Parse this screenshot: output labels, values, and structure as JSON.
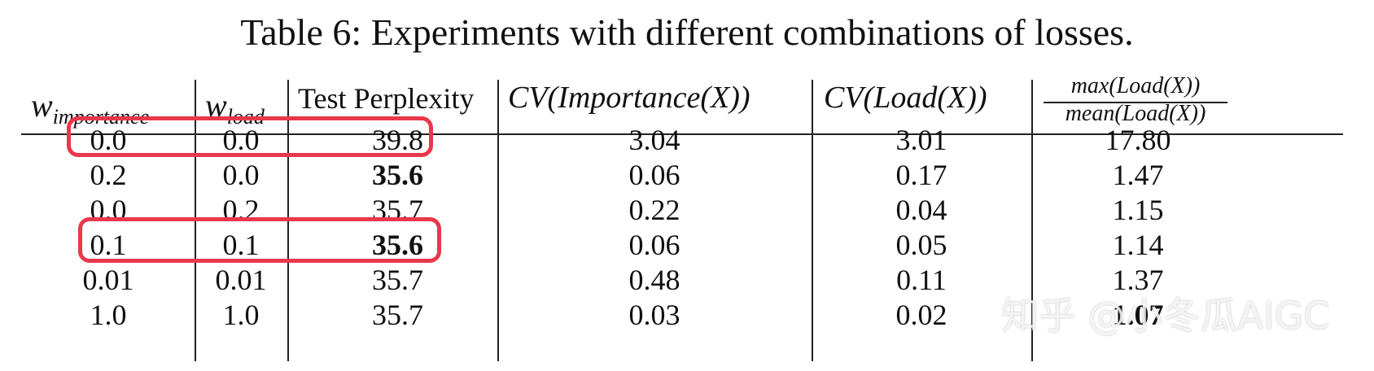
{
  "caption": "Table 6: Experiments with different combinations of losses.",
  "headers": {
    "w_importance": {
      "base": "w",
      "sub": "importance"
    },
    "w_load": {
      "base": "w",
      "sub": "load"
    },
    "test_perplexity": "Test Perplexity",
    "cv_importance": "CV(Importance(X))",
    "cv_load": "CV(Load(X))",
    "ratio_numerator": "max(Load(X))",
    "ratio_denominator": "mean(Load(X))"
  },
  "rows": [
    {
      "w_importance": "0.0",
      "w_load": "0.0",
      "test_perplexity": "39.8",
      "cv_importance": "3.04",
      "cv_load": "3.01",
      "max_mean_load": "17.80"
    },
    {
      "w_importance": "0.2",
      "w_load": "0.0",
      "test_perplexity": "35.6",
      "cv_importance": "0.06",
      "cv_load": "0.17",
      "max_mean_load": "1.47"
    },
    {
      "w_importance": "0.0",
      "w_load": "0.2",
      "test_perplexity": "35.7",
      "cv_importance": "0.22",
      "cv_load": "0.04",
      "max_mean_load": "1.15"
    },
    {
      "w_importance": "0.1",
      "w_load": "0.1",
      "test_perplexity": "35.6",
      "cv_importance": "0.06",
      "cv_load": "0.05",
      "max_mean_load": "1.14"
    },
    {
      "w_importance": "0.01",
      "w_load": "0.01",
      "test_perplexity": "35.7",
      "cv_importance": "0.48",
      "cv_load": "0.11",
      "max_mean_load": "1.37"
    },
    {
      "w_importance": "1.0",
      "w_load": "1.0",
      "test_perplexity": "35.7",
      "cv_importance": "0.03",
      "cv_load": "0.02",
      "max_mean_load": "1.07"
    }
  ],
  "bold_cells": [
    "rows.1.test_perplexity",
    "rows.3.test_perplexity",
    "rows.5.max_mean_load"
  ],
  "highlighted_rows": [
    0,
    3
  ],
  "highlight_color": "#e8384b",
  "watermark": "知乎 @小冬瓜AIGC"
}
